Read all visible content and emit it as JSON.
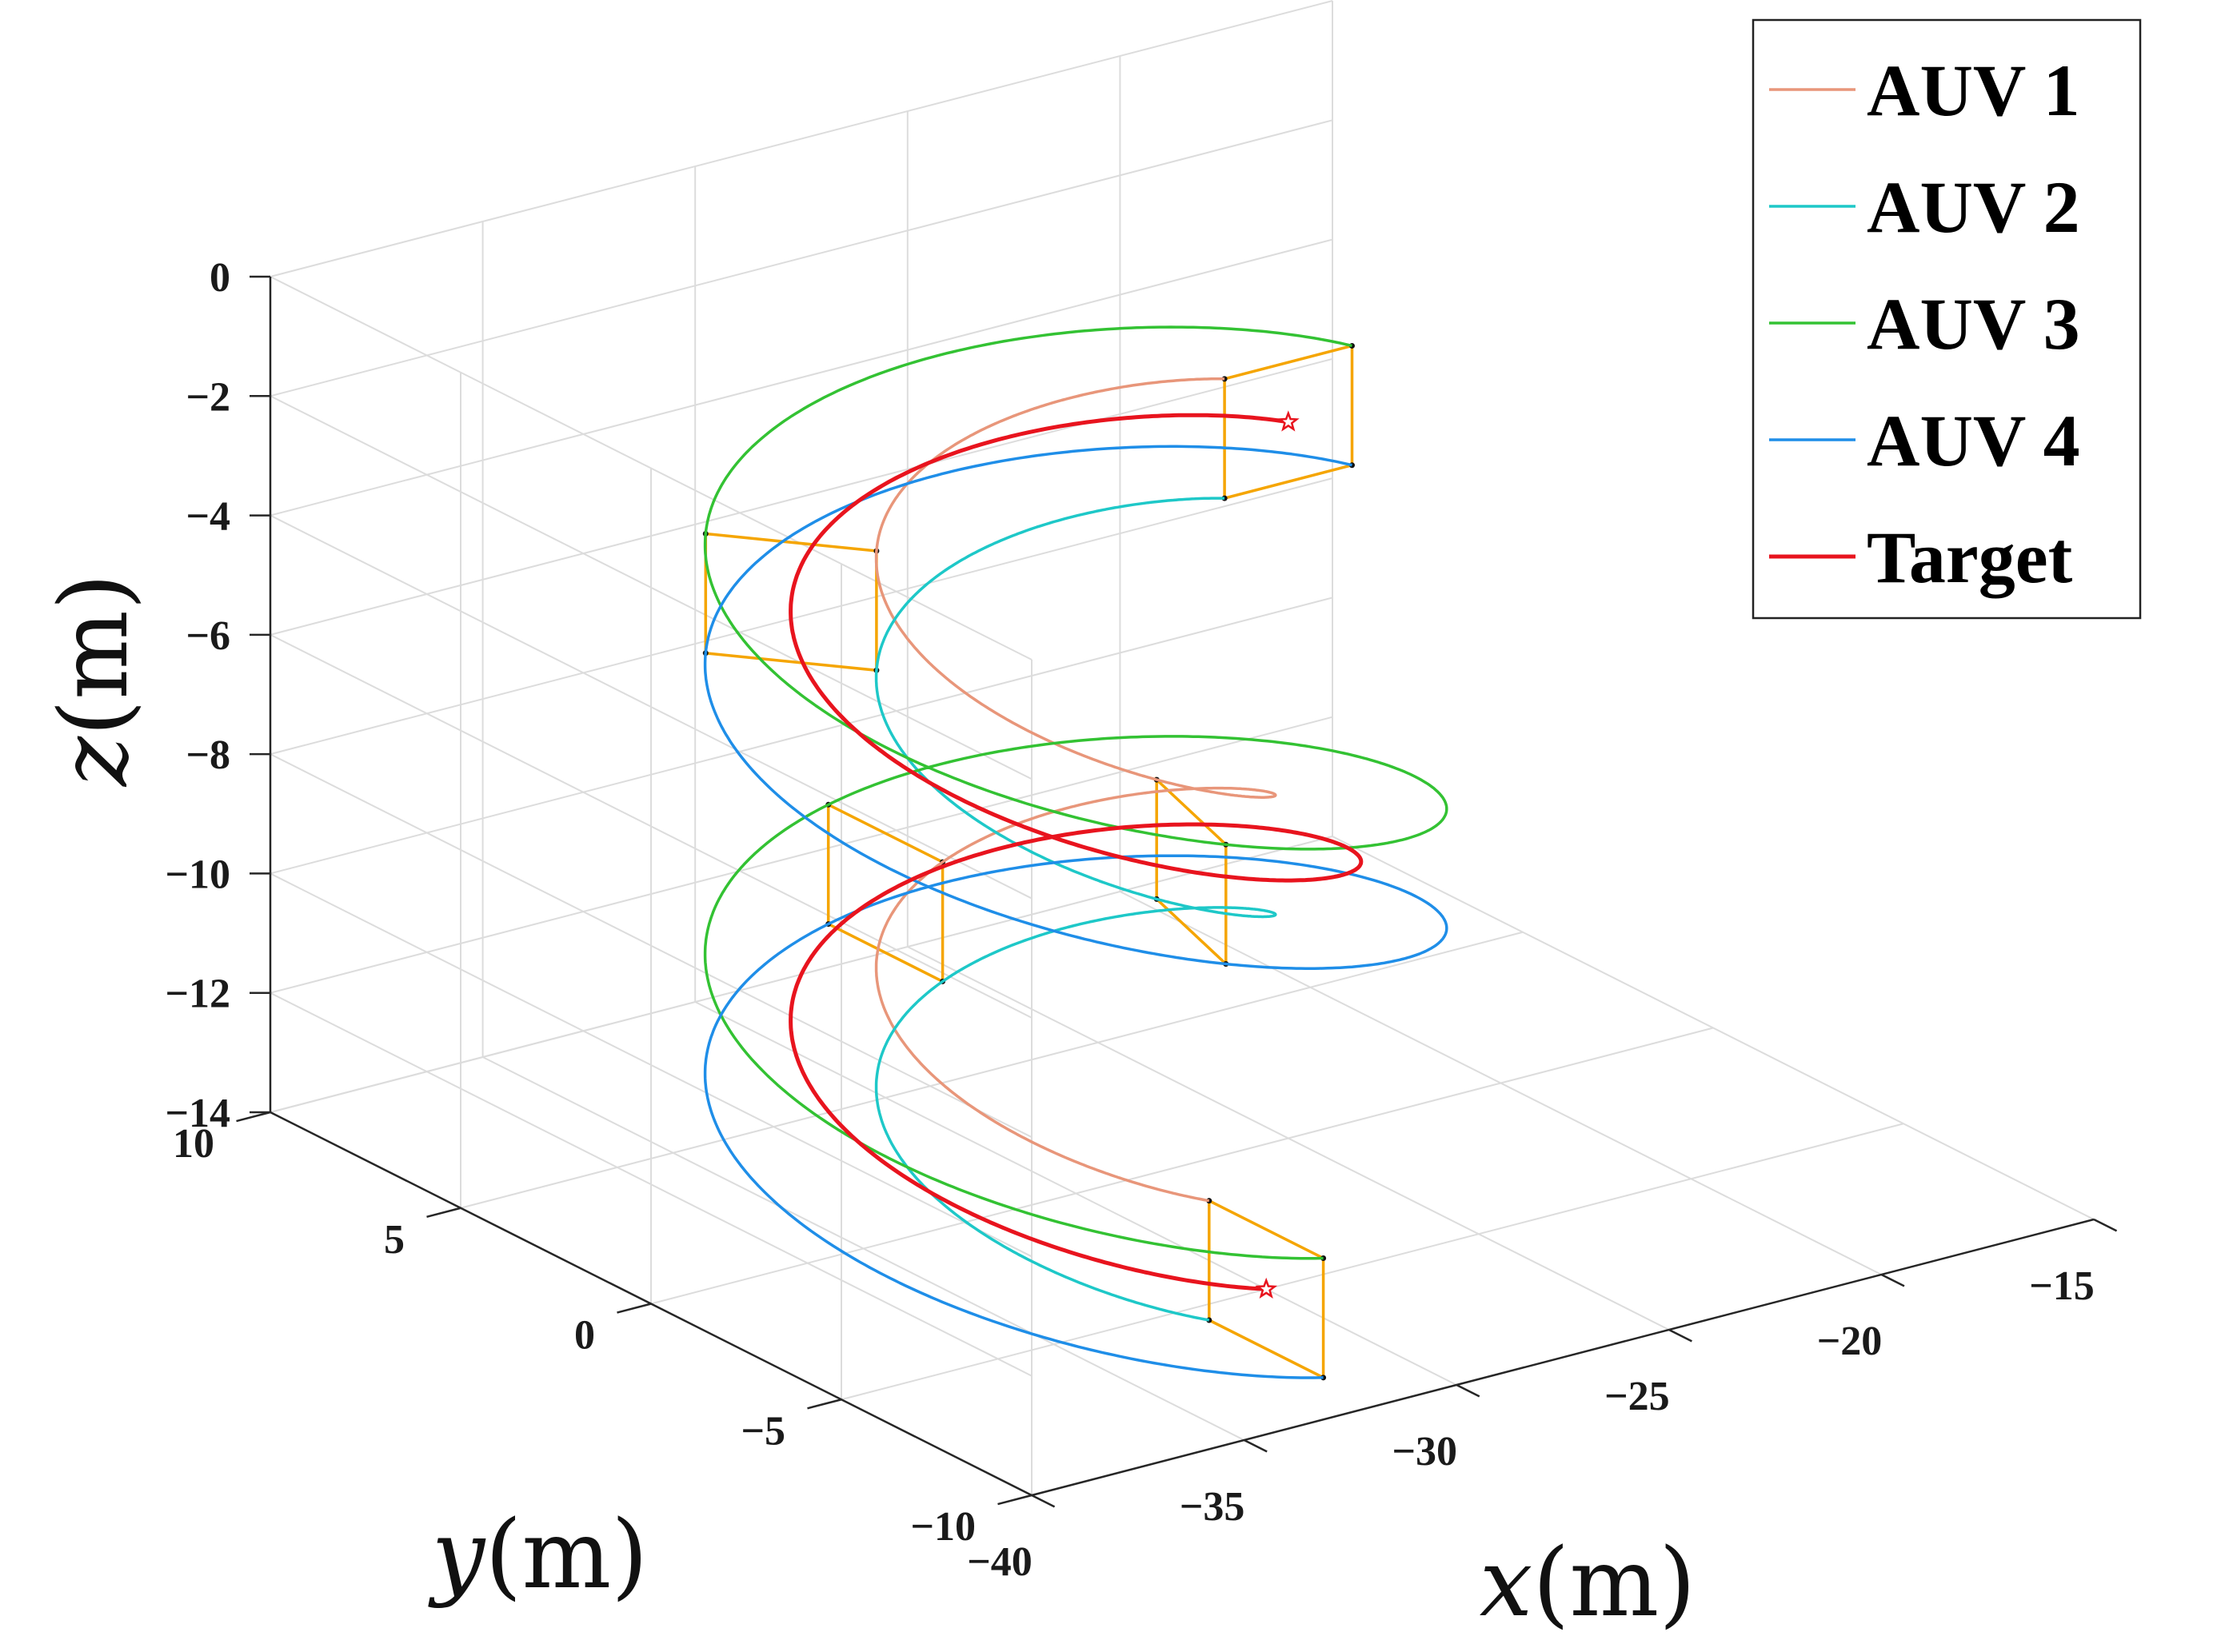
{
  "chart_data": {
    "type": "line",
    "projection": "3d",
    "xlabel_var": "x",
    "ylabel_var": "y",
    "zlabel_var": "z",
    "unit": "(m)",
    "xlim": [
      -40,
      -15
    ],
    "ylim": [
      -10,
      10
    ],
    "zlim": [
      -14,
      0
    ],
    "xticks": [
      -40,
      -35,
      -30,
      -25,
      -20,
      -15
    ],
    "xtick_labels": [
      "−40",
      "−35",
      "−30",
      "−25",
      "−20",
      "−15"
    ],
    "yticks": [
      10,
      5,
      0,
      -5,
      -10
    ],
    "ytick_labels": [
      "10",
      "5",
      "0",
      "−5",
      "−10"
    ],
    "zticks": [
      0,
      -2,
      -4,
      -6,
      -8,
      -10,
      -12,
      -14
    ],
    "ztick_labels": [
      "0",
      "−2",
      "−4",
      "−6",
      "−8",
      "−10",
      "−12",
      "−14"
    ],
    "grid": true,
    "legend_position": "top-right",
    "helix": {
      "center_x": -30,
      "center_y": 0,
      "start_angle_deg": -90,
      "total_turns": 1.75,
      "z_start": -14,
      "z_end": -2,
      "radius_target": 5,
      "formation_offset": 1.5,
      "depth_offset": 1
    },
    "series": [
      {
        "name": "AUV 1",
        "color": "#e8967a",
        "radial": -1.5,
        "dz": 1
      },
      {
        "name": "AUV 2",
        "color": "#1ec8c8",
        "radial": -1.5,
        "dz": -1
      },
      {
        "name": "AUV 3",
        "color": "#33c233",
        "radial": 1.5,
        "dz": 1
      },
      {
        "name": "AUV 4",
        "color": "#1f8ee8",
        "radial": 1.5,
        "dz": -1
      },
      {
        "name": "Target",
        "color": "#e8141e",
        "radial": 0,
        "dz": 0
      }
    ],
    "formation_color": "#f5a500",
    "formation_snapshots_t": [
      0,
      0.2857,
      0.6,
      0.7857,
      1.0
    ],
    "target_marker": "star"
  }
}
